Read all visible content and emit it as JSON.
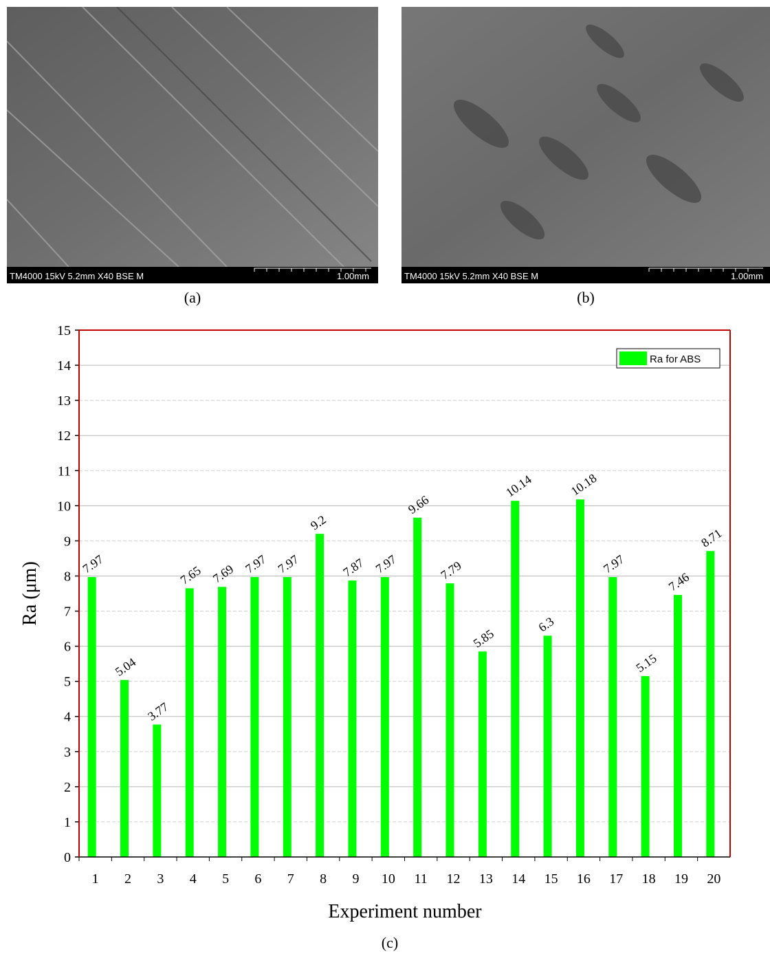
{
  "images": [
    {
      "info": "TM4000 15kV 5.2mm X40 BSE M",
      "scale": "1.00mm",
      "caption": "(a)"
    },
    {
      "info": "TM4000 15kV 5.2mm X40 BSE M",
      "scale": "1.00mm",
      "caption": "(b)"
    }
  ],
  "chart_data": {
    "type": "bar",
    "caption": "(c)",
    "x_label": "Experiment number",
    "y_label": "Ra (μm)",
    "categories": [
      "1",
      "2",
      "3",
      "4",
      "5",
      "6",
      "7",
      "8",
      "9",
      "10",
      "11",
      "12",
      "13",
      "14",
      "15",
      "16",
      "17",
      "18",
      "19",
      "20"
    ],
    "series": [
      {
        "name": "Ra for ABS",
        "color": "#00ff00",
        "values": [
          7.97,
          5.04,
          3.77,
          7.65,
          7.69,
          7.97,
          7.97,
          9.2,
          7.87,
          7.97,
          9.66,
          7.79,
          5.85,
          10.14,
          6.3,
          10.18,
          7.97,
          5.15,
          7.46,
          8.71
        ]
      }
    ],
    "ylim": [
      0,
      15
    ],
    "yticks": [
      0,
      1,
      2,
      3,
      4,
      5,
      6,
      7,
      8,
      9,
      10,
      11,
      12,
      13,
      14,
      15
    ],
    "grid": true,
    "legend": "top-right",
    "axis_color": "#c00000"
  }
}
